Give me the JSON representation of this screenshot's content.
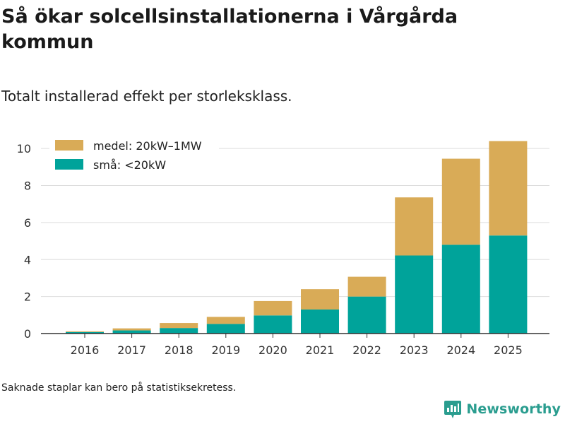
{
  "header": {
    "title": "Så ökar solcellsinstallationerna i Vårgårda kommun",
    "subtitle": "Totalt installerad effekt per storleksklass."
  },
  "footer": {
    "note": "Saknade staplar kan bero på statistiksekretess.",
    "brand": "Newsworthy"
  },
  "colors": {
    "small": "#00a39a",
    "medium": "#d9ab57",
    "grid": "#dddddd",
    "axis": "#333333",
    "brand": "#2a9d8f"
  },
  "chart_data": {
    "type": "bar",
    "stacked": true,
    "title": "Så ökar solcellsinstallationerna i Vårgårda kommun",
    "subtitle": "Totalt installerad effekt per storleksklass.",
    "xlabel": "",
    "ylabel": "",
    "ylim": [
      0,
      11
    ],
    "yticks": [
      0,
      2,
      4,
      6,
      8,
      10
    ],
    "grid": true,
    "legend_position": "top-left",
    "categories": [
      "2016",
      "2017",
      "2018",
      "2019",
      "2020",
      "2021",
      "2022",
      "2023",
      "2024",
      "2025"
    ],
    "series": [
      {
        "name": "små: <20kW",
        "color": "#00a39a",
        "values": [
          0.08,
          0.17,
          0.3,
          0.52,
          0.98,
          1.3,
          2.0,
          4.22,
          4.8,
          5.3
        ]
      },
      {
        "name": "medel: 20kW–1MW",
        "color": "#d9ab57",
        "values": [
          0.04,
          0.11,
          0.27,
          0.38,
          0.78,
          1.1,
          1.07,
          3.14,
          4.65,
          5.1
        ]
      }
    ],
    "legend_order": [
      "medel: 20kW–1MW",
      "små: <20kW"
    ]
  }
}
